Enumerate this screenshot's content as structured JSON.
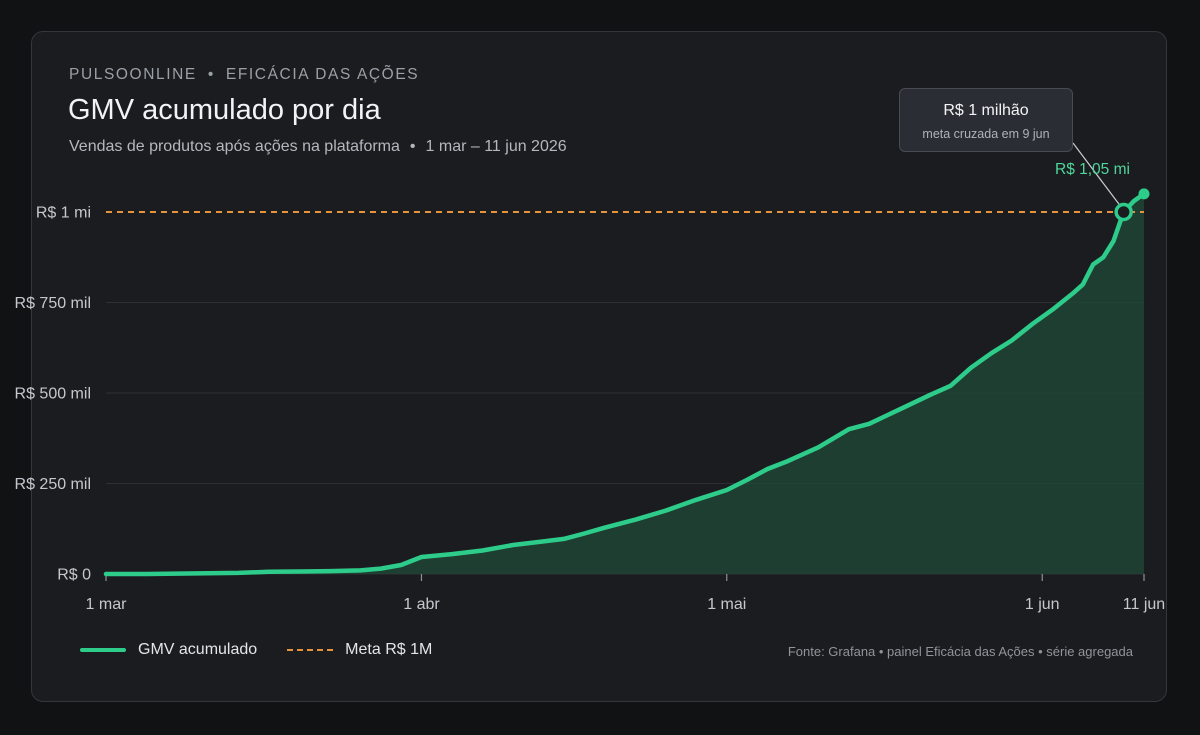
{
  "header": {
    "brand": "PULSOONLINE",
    "separator": "•",
    "section": "EFICÁCIA DAS AÇÕES",
    "title": "GMV acumulado por dia",
    "subtitle": "Vendas de produtos após ações na plataforma",
    "period": "1 mar – 11 jun 2026"
  },
  "tooltip": {
    "title": "R$ 1 milhão",
    "detail": "meta cruzada em 9 jun"
  },
  "end_label": "R$ 1,05 mi",
  "legend": {
    "series_label": "GMV acumulado",
    "goal_label": "Meta R$ 1M"
  },
  "source": "Fonte: Grafana • painel Eficácia das Ações • série agregada",
  "colors": {
    "series": "#2ecc8a",
    "area": "#1f4a38",
    "goal": "#e8923a",
    "grid": "#2e3035"
  },
  "chart_data": {
    "type": "area",
    "x_unit": "date",
    "y_unit": "R$ mil",
    "xlim": [
      "2026-03-01",
      "2026-06-11"
    ],
    "ylim": [
      0,
      1050
    ],
    "y_ticks": [
      {
        "value": 0,
        "label": "R$ 0"
      },
      {
        "value": 250,
        "label": "R$ 250 mil"
      },
      {
        "value": 500,
        "label": "R$ 500 mil"
      },
      {
        "value": 750,
        "label": "R$ 750 mil"
      },
      {
        "value": 1000,
        "label": "R$ 1 mi"
      }
    ],
    "x_ticks": [
      {
        "date": "2026-03-01",
        "label": "1 mar"
      },
      {
        "date": "2026-04-01",
        "label": "1 abr"
      },
      {
        "date": "2026-05-01",
        "label": "1 mai"
      },
      {
        "date": "2026-06-01",
        "label": "1 jun"
      },
      {
        "date": "2026-06-11",
        "label": "11 jun"
      }
    ],
    "grid": true,
    "legend_position": "bottom-left",
    "goal": {
      "value": 1000,
      "label": "Meta R$ 1M",
      "crossed_on": "2026-06-09"
    },
    "series": [
      {
        "name": "GMV acumulado",
        "points": [
          [
            "2026-03-01",
            0
          ],
          [
            "2026-03-05",
            0
          ],
          [
            "2026-03-08",
            1
          ],
          [
            "2026-03-11",
            2
          ],
          [
            "2026-03-14",
            3
          ],
          [
            "2026-03-17",
            6
          ],
          [
            "2026-03-20",
            7
          ],
          [
            "2026-03-23",
            8
          ],
          [
            "2026-03-26",
            10
          ],
          [
            "2026-03-28",
            15
          ],
          [
            "2026-03-30",
            25
          ],
          [
            "2026-04-01",
            47
          ],
          [
            "2026-04-04",
            55
          ],
          [
            "2026-04-07",
            65
          ],
          [
            "2026-04-10",
            80
          ],
          [
            "2026-04-13",
            90
          ],
          [
            "2026-04-15",
            97
          ],
          [
            "2026-04-17",
            112
          ],
          [
            "2026-04-19",
            128
          ],
          [
            "2026-04-22",
            150
          ],
          [
            "2026-04-25",
            175
          ],
          [
            "2026-04-28",
            205
          ],
          [
            "2026-05-01",
            232
          ],
          [
            "2026-05-03",
            260
          ],
          [
            "2026-05-05",
            290
          ],
          [
            "2026-05-07",
            312
          ],
          [
            "2026-05-10",
            350
          ],
          [
            "2026-05-13",
            400
          ],
          [
            "2026-05-15",
            415
          ],
          [
            "2026-05-18",
            455
          ],
          [
            "2026-05-21",
            495
          ],
          [
            "2026-05-23",
            520
          ],
          [
            "2026-05-25",
            570
          ],
          [
            "2026-05-27",
            610
          ],
          [
            "2026-05-29",
            645
          ],
          [
            "2026-05-31",
            690
          ],
          [
            "2026-06-02",
            730
          ],
          [
            "2026-06-04",
            775
          ],
          [
            "2026-06-05",
            800
          ],
          [
            "2026-06-06",
            855
          ],
          [
            "2026-06-07",
            875
          ],
          [
            "2026-06-08",
            920
          ],
          [
            "2026-06-09",
            1000
          ],
          [
            "2026-06-10",
            1030
          ],
          [
            "2026-06-11",
            1050
          ]
        ]
      }
    ]
  }
}
